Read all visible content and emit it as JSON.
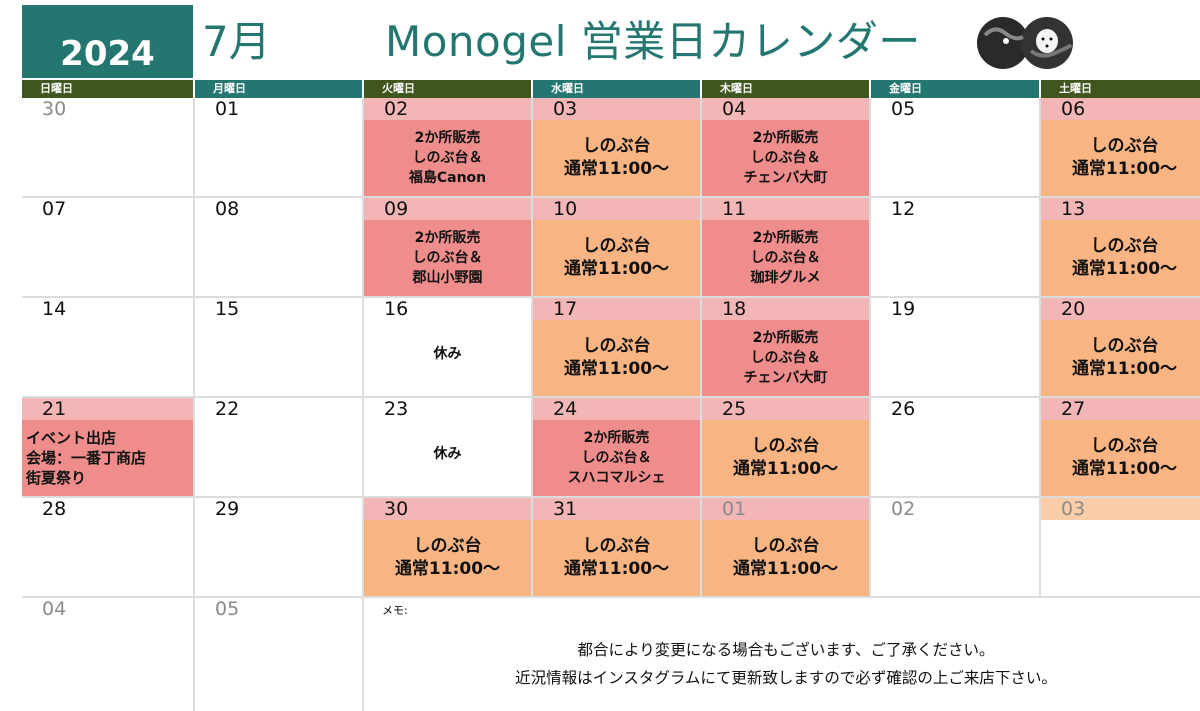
{
  "year": "2024",
  "month": "7月",
  "title": "Monogel 営業日カレンダー",
  "logo_icon": "two-dark-round-faces-logo",
  "colors": {
    "teal": "#247770",
    "olive": "#41561f",
    "event_pink": "#ee8d8c",
    "date_band_pink": "#f2b6b6",
    "open_orange": "#f8b482"
  },
  "weekdays": [
    "日曜日",
    "月曜日",
    "火曜日",
    "水曜日",
    "木曜日",
    "金曜日",
    "土曜日"
  ],
  "weeks": [
    [
      {
        "date": "30",
        "muted": true
      },
      {
        "date": "01"
      },
      {
        "date": "02",
        "type": "pink",
        "lines": [
          "2か所販売",
          "しのぶ台＆",
          "福島Canon"
        ]
      },
      {
        "date": "03",
        "type": "orange",
        "lines": [
          "しのぶ台",
          "通常11:00〜"
        ]
      },
      {
        "date": "04",
        "type": "pink",
        "lines": [
          "2か所販売",
          "しのぶ台＆",
          "チェンバ大町"
        ]
      },
      {
        "date": "05"
      },
      {
        "date": "06",
        "type": "orange",
        "lines": [
          "しのぶ台",
          "通常11:00〜"
        ]
      }
    ],
    [
      {
        "date": "07"
      },
      {
        "date": "08"
      },
      {
        "date": "09",
        "type": "pink",
        "lines": [
          "2か所販売",
          "しのぶ台＆",
          "郡山小野園"
        ]
      },
      {
        "date": "10",
        "type": "orange",
        "lines": [
          "しのぶ台",
          "通常11:00〜"
        ]
      },
      {
        "date": "11",
        "type": "pink",
        "lines": [
          "2か所販売",
          "しのぶ台＆",
          "珈琲グルメ"
        ]
      },
      {
        "date": "12"
      },
      {
        "date": "13",
        "type": "orange",
        "lines": [
          "しのぶ台",
          "通常11:00〜"
        ]
      }
    ],
    [
      {
        "date": "14"
      },
      {
        "date": "15"
      },
      {
        "date": "16",
        "type": "rest",
        "lines": [
          "休み"
        ]
      },
      {
        "date": "17",
        "type": "orange",
        "lines": [
          "しのぶ台",
          "通常11:00〜"
        ]
      },
      {
        "date": "18",
        "type": "pink",
        "lines": [
          "2か所販売",
          "しのぶ台＆",
          "チェンバ大町"
        ]
      },
      {
        "date": "19"
      },
      {
        "date": "20",
        "type": "orange",
        "lines": [
          "しのぶ台",
          "通常11:00〜"
        ]
      }
    ],
    [
      {
        "date": "21",
        "type": "event",
        "lines": [
          "イベント出店",
          "会場：一番丁商店",
          "街夏祭り"
        ]
      },
      {
        "date": "22"
      },
      {
        "date": "23",
        "type": "rest",
        "lines": [
          "休み"
        ]
      },
      {
        "date": "24",
        "type": "pink",
        "lines": [
          "2か所販売",
          "しのぶ台＆",
          "スハコマルシェ"
        ]
      },
      {
        "date": "25",
        "type": "orange",
        "lines": [
          "しのぶ台",
          "通常11:00〜"
        ]
      },
      {
        "date": "26"
      },
      {
        "date": "27",
        "type": "orange",
        "lines": [
          "しのぶ台",
          "通常11:00〜"
        ]
      }
    ],
    [
      {
        "date": "28"
      },
      {
        "date": "29"
      },
      {
        "date": "30",
        "type": "orange",
        "lines": [
          "しのぶ台",
          "通常11:00〜"
        ]
      },
      {
        "date": "31",
        "type": "orange",
        "lines": [
          "しのぶ台",
          "通常11:00〜"
        ]
      },
      {
        "date": "01",
        "muted": true,
        "type": "orange",
        "lines": [
          "しのぶ台",
          "通常11:00〜"
        ]
      },
      {
        "date": "02",
        "muted": true
      },
      {
        "date": "03",
        "muted": true,
        "type": "lorange"
      }
    ]
  ],
  "last_row": [
    {
      "date": "04",
      "muted": true
    },
    {
      "date": "05",
      "muted": true
    }
  ],
  "memo": {
    "label": "メモ:",
    "lines": [
      "都合により変更になる場合もございます、ご了承ください。",
      "近況情報はインスタグラムにて更新致しますので必ず確認の上ご来店下さい。"
    ]
  }
}
